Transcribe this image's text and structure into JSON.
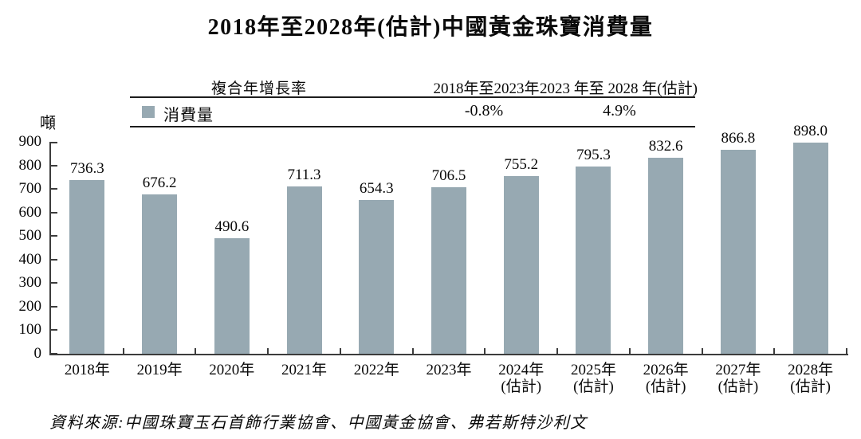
{
  "cagr_table": {
    "metric_header": "複合年增長率",
    "period1": "2018年至2023年",
    "period2": "2023 年至 2028 年(估計)",
    "row_label": "消費量",
    "period1_value": "-0.8%",
    "period2_value": "4.9%"
  },
  "axis": {
    "unit": "噸"
  },
  "source": "資料來源:中國珠寶玉石首飾行業協會、中國黃金協會、弗若斯特沙利文",
  "colors": {
    "bar": "#97A9B2",
    "axis": "#3C3C3C",
    "text": "#0A0A0A"
  },
  "chart_data": {
    "type": "bar",
    "title": "2018年至2028年(估計)中國黃金珠寶消費量",
    "unit": "噸",
    "categories": [
      "2018年",
      "2019年",
      "2020年",
      "2021年",
      "2022年",
      "2023年",
      "2024年",
      "2025年",
      "2026年",
      "2027年",
      "2028年"
    ],
    "category_sublabels": [
      "",
      "",
      "",
      "",
      "",
      "",
      "(估計)",
      "(估計)",
      "(估計)",
      "(估計)",
      "(估計)"
    ],
    "values": [
      736.3,
      676.2,
      490.6,
      711.3,
      654.3,
      706.5,
      755.2,
      795.3,
      832.6,
      866.8,
      898.0
    ],
    "ylabel": "噸",
    "ylim": [
      0,
      900
    ],
    "ytick_step": 100,
    "legend": [
      {
        "label": "消費量",
        "color": "#97A9B2"
      }
    ],
    "legend_position": "table-left",
    "grid": false,
    "cagr": [
      {
        "period": "2018年至2023年",
        "value": "-0.8%"
      },
      {
        "period": "2023年至2028年(估計)",
        "value": "4.9%"
      }
    ]
  }
}
